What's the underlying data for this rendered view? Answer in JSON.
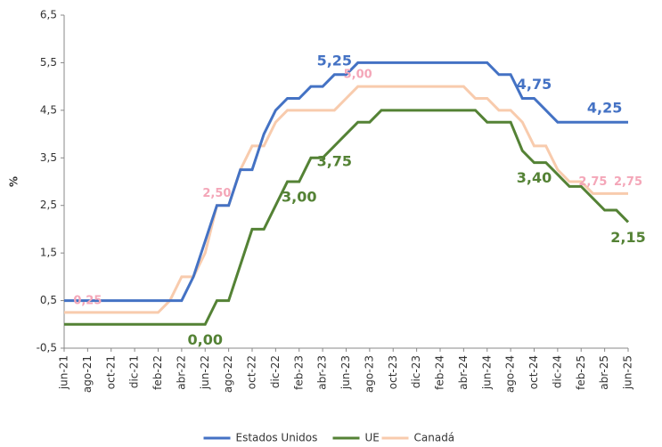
{
  "chart_data": {
    "type": "line",
    "y_label": "%",
    "categories": [
      "jun-21",
      null,
      "ago-21",
      null,
      "oct-21",
      null,
      "dic-21",
      null,
      "feb-22",
      null,
      "abr-22",
      null,
      "jun-22",
      null,
      "ago-22",
      null,
      "oct-22",
      null,
      "dic-22",
      null,
      "feb-23",
      null,
      "abr-23",
      null,
      "jun-23",
      null,
      "ago-23",
      null,
      "oct-23",
      null,
      "dic-23",
      null,
      "feb-24",
      null,
      "abr-24",
      null,
      "jun-24",
      null,
      "ago-24",
      null,
      "oct-24",
      null,
      "dic-24",
      null,
      "feb-25",
      null,
      "abr-25",
      null,
      "jun-25"
    ],
    "series": [
      {
        "name": "Estados Unidos",
        "color": "#4472c4",
        "values": [
          0.5,
          0.5,
          0.5,
          0.5,
          0.5,
          0.5,
          0.5,
          0.5,
          0.5,
          0.5,
          0.5,
          1.0,
          1.75,
          2.5,
          2.5,
          3.25,
          3.25,
          4.0,
          4.5,
          4.75,
          4.75,
          5.0,
          5.0,
          5.25,
          5.25,
          5.5,
          5.5,
          5.5,
          5.5,
          5.5,
          5.5,
          5.5,
          5.5,
          5.5,
          5.5,
          5.5,
          5.5,
          5.25,
          5.25,
          4.75,
          4.75,
          4.5,
          4.25,
          4.25,
          4.25,
          4.25,
          4.25,
          4.25,
          4.25
        ],
        "value_labels": [
          null,
          null,
          null,
          null,
          null,
          null,
          null,
          null,
          null,
          null,
          null,
          null,
          null,
          null,
          null,
          null,
          null,
          null,
          null,
          null,
          null,
          null,
          null,
          "5,25",
          null,
          null,
          null,
          null,
          null,
          null,
          null,
          null,
          null,
          null,
          null,
          null,
          null,
          null,
          null,
          null,
          "4,75",
          null,
          null,
          null,
          null,
          null,
          "4,25",
          null,
          null
        ]
      },
      {
        "name": "UE",
        "color": "#548235",
        "values": [
          0,
          0,
          0,
          0,
          0,
          0,
          0,
          0,
          0,
          0,
          0,
          0,
          0,
          0.5,
          0.5,
          1.25,
          2.0,
          2.0,
          2.5,
          3.0,
          3.0,
          3.5,
          3.5,
          3.75,
          4.0,
          4.25,
          4.25,
          4.5,
          4.5,
          4.5,
          4.5,
          4.5,
          4.5,
          4.5,
          4.5,
          4.5,
          4.25,
          4.25,
          4.25,
          3.65,
          3.4,
          3.4,
          3.15,
          2.9,
          2.9,
          2.65,
          2.4,
          2.4,
          2.15
        ],
        "value_labels": [
          null,
          null,
          null,
          null,
          null,
          null,
          null,
          null,
          null,
          null,
          null,
          null,
          "0,00",
          null,
          null,
          null,
          null,
          null,
          null,
          null,
          "3,00",
          null,
          null,
          "3,75",
          null,
          null,
          null,
          null,
          null,
          null,
          null,
          null,
          null,
          null,
          null,
          null,
          null,
          null,
          null,
          null,
          "3,40",
          null,
          null,
          null,
          null,
          null,
          null,
          null,
          "2,15"
        ]
      },
      {
        "name": "Canadá",
        "color": "#f8cbad",
        "values": [
          0.25,
          0.25,
          0.25,
          0.25,
          0.25,
          0.25,
          0.25,
          0.25,
          0.25,
          0.5,
          1.0,
          1.0,
          1.5,
          2.5,
          2.5,
          3.25,
          3.75,
          3.75,
          4.25,
          4.5,
          4.5,
          4.5,
          4.5,
          4.5,
          4.75,
          5.0,
          5.0,
          5.0,
          5.0,
          5.0,
          5.0,
          5.0,
          5.0,
          5.0,
          5.0,
          4.75,
          4.75,
          4.5,
          4.5,
          4.25,
          3.75,
          3.75,
          3.25,
          3.0,
          3.0,
          2.75,
          2.75,
          2.75,
          2.75
        ],
        "value_labels": [
          null,
          null,
          "0,25",
          null,
          null,
          null,
          null,
          null,
          null,
          null,
          null,
          null,
          null,
          "2,50",
          null,
          null,
          null,
          null,
          null,
          null,
          null,
          null,
          null,
          null,
          null,
          "5,00",
          null,
          null,
          null,
          null,
          null,
          null,
          null,
          null,
          null,
          null,
          null,
          null,
          null,
          null,
          null,
          null,
          null,
          null,
          null,
          "2,75",
          null,
          null,
          "2,75"
        ]
      }
    ],
    "ylim": [
      -0.5,
      6.5
    ],
    "yticks": [
      {
        "value": -0.5,
        "label": "-0,5"
      },
      {
        "value": 0.5,
        "label": "0,5"
      },
      {
        "value": 1.5,
        "label": "1,5"
      },
      {
        "value": 2.5,
        "label": "2,5"
      },
      {
        "value": 3.5,
        "label": "3,5"
      },
      {
        "value": 4.5,
        "label": "4,5"
      },
      {
        "value": 5.5,
        "label": "5,5"
      },
      {
        "value": 6.5,
        "label": "6,5"
      }
    ],
    "grid": false,
    "legend": "bottom"
  }
}
